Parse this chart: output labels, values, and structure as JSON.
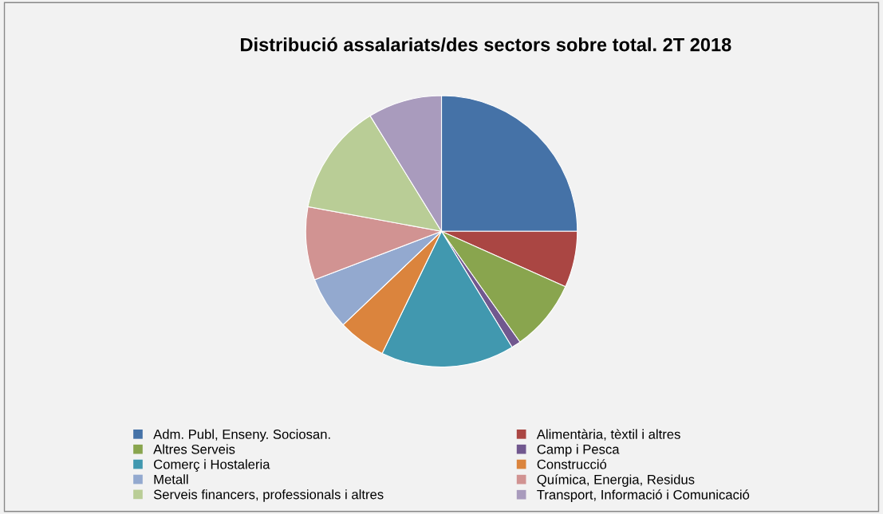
{
  "chart_data": {
    "type": "pie",
    "title": "Distribució assalariats/des sectors sobre total. 2T 2018",
    "categories": [
      "Adm. Publ, Enseny. Sociosan.",
      "Alimentària, tèxtil i altres",
      "Altres Serveis",
      "Camp i Pesca",
      "Comerç i Hostaleria",
      "Construcció",
      "Metall",
      "Química, Energia, Residus",
      "Serveis financers, professionals i altres",
      "Transport, Informació i Comunicació"
    ],
    "values": [
      25,
      6.7,
      8.5,
      1.1,
      15.9,
      5.7,
      6.3,
      8.7,
      13.3,
      8.8
    ],
    "colors": [
      "#4572a7",
      "#aa4643",
      "#89a54e",
      "#71588f",
      "#4198af",
      "#db843d",
      "#93a9cf",
      "#d19392",
      "#b9cd96",
      "#a99bbd"
    ],
    "legend": "bottom"
  }
}
